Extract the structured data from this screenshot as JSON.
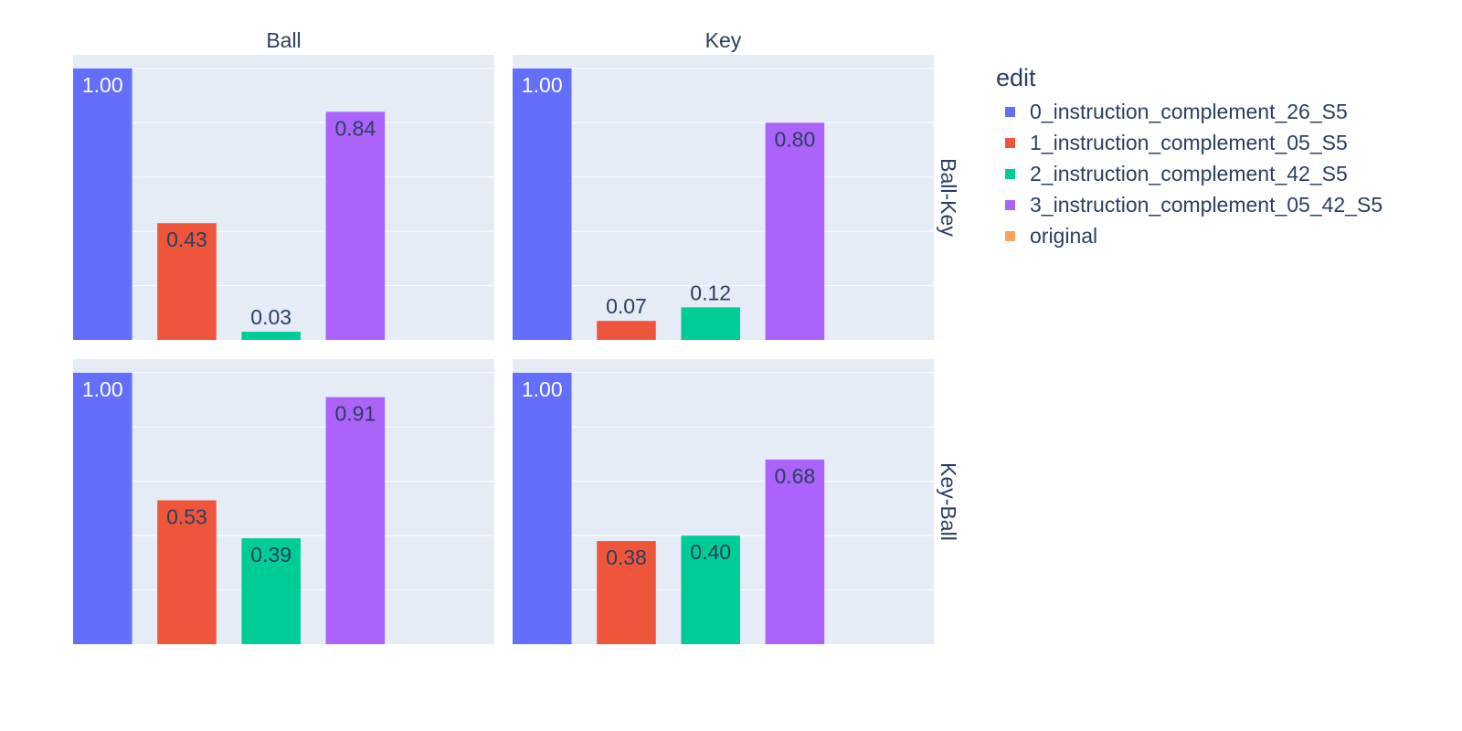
{
  "chart_data": {
    "type": "bar",
    "title": "",
    "legend": {
      "title": "edit",
      "items": [
        {
          "name": "0_instruction_complement_26_S5",
          "color": "#636efa"
        },
        {
          "name": "1_instruction_complement_05_S5",
          "color": "#ef553b"
        },
        {
          "name": "2_instruction_complement_42_S5",
          "color": "#00cc96"
        },
        {
          "name": "3_instruction_complement_05_42_S5",
          "color": "#ab63fa"
        },
        {
          "name": "original",
          "color": "#ffa15a"
        }
      ],
      "placement": "top-right"
    },
    "facet_cols": [
      "Ball",
      "Key"
    ],
    "facet_rows": [
      "Ball-Key",
      "Key-Ball"
    ],
    "ylim": [
      0,
      1.05
    ],
    "grid": true,
    "panels": [
      {
        "row": "Ball-Key",
        "col": "Ball",
        "values": [
          1.0,
          0.43,
          0.03,
          0.84,
          null
        ],
        "labels": [
          "1.00",
          "0.43",
          "0.03",
          "0.84",
          ""
        ]
      },
      {
        "row": "Ball-Key",
        "col": "Key",
        "values": [
          1.0,
          0.07,
          0.12,
          0.8,
          null
        ],
        "labels": [
          "1.00",
          "0.07",
          "0.12",
          "0.80",
          ""
        ]
      },
      {
        "row": "Key-Ball",
        "col": "Ball",
        "values": [
          1.0,
          0.53,
          0.39,
          0.91,
          null
        ],
        "labels": [
          "1.00",
          "0.53",
          "0.39",
          "0.91",
          ""
        ]
      },
      {
        "row": "Key-Ball",
        "col": "Key",
        "values": [
          1.0,
          0.38,
          0.4,
          0.68,
          null
        ],
        "labels": [
          "1.00",
          "0.38",
          "0.40",
          "0.68",
          ""
        ]
      }
    ]
  }
}
